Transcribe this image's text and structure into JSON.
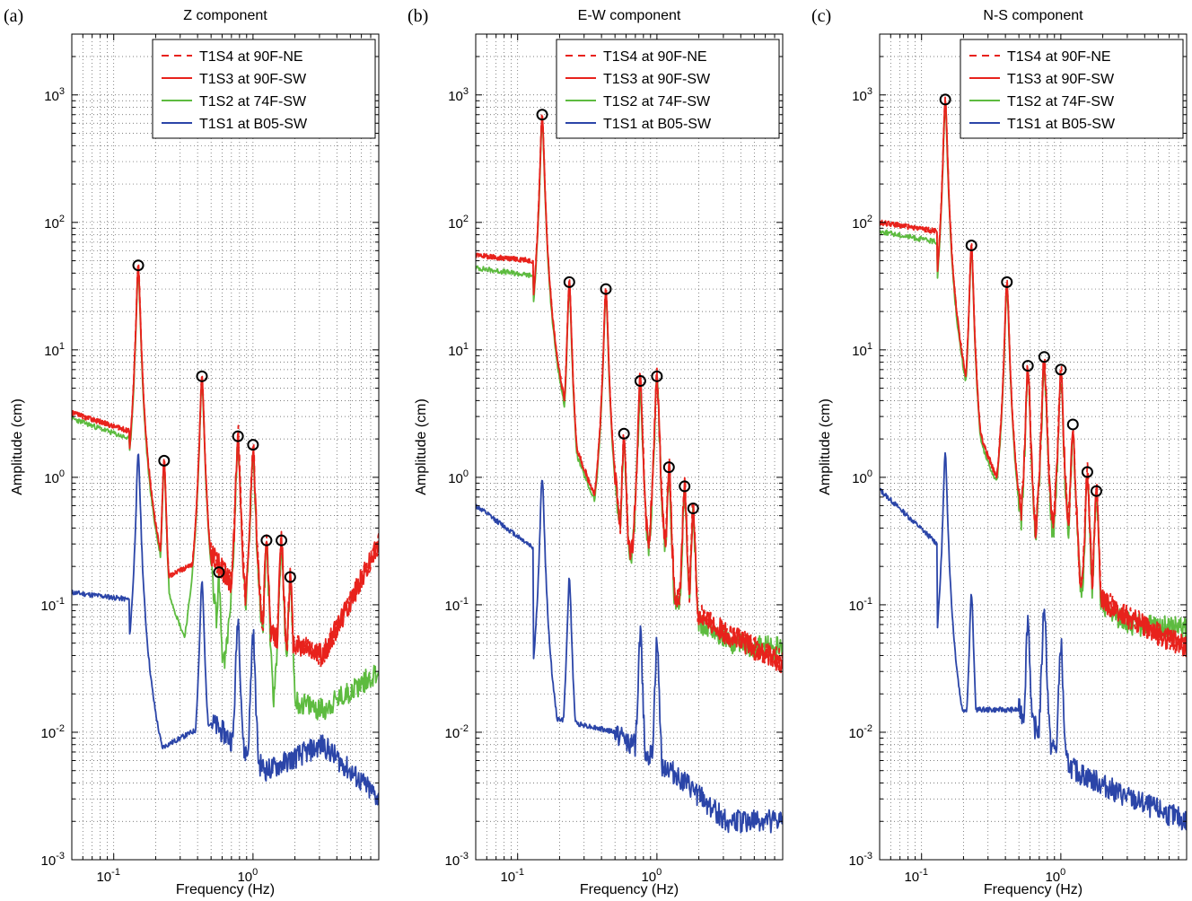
{
  "figure": {
    "ylabel": "Amplitude (cm)",
    "xlabel": "Frequency (Hz)"
  },
  "legend": [
    {
      "label": "T1S4 at 90F-NE",
      "color": "#e8221c",
      "style": "dashed"
    },
    {
      "label": "T1S3 at 90F-SW",
      "color": "#e8221c",
      "style": "solid"
    },
    {
      "label": "T1S2 at 74F-SW",
      "color": "#5dbb3f",
      "style": "solid"
    },
    {
      "label": "T1S1 at B05-SW",
      "color": "#2b45a8",
      "style": "solid"
    }
  ],
  "chart_data": [
    {
      "type": "line",
      "panel": "(a)",
      "title": "Z component",
      "xscale": "log",
      "yscale": "log",
      "xlim": [
        0.05,
        8
      ],
      "ylim": [
        0.001,
        3000
      ],
      "xticks": [
        "10^-1",
        "10^0"
      ],
      "yticks": [
        "10^-3",
        "10^-2",
        "10^-1",
        "10^0",
        "10^1",
        "10^2",
        "10^3"
      ],
      "grid": true,
      "legend_position": "top-right",
      "base": {
        "T1S3": [
          3.2,
          2.3
        ],
        "T1S2": [
          2.9,
          2.0
        ],
        "T1S1": [
          0.125,
          0.11
        ]
      },
      "peaks": [
        {
          "f": 0.15,
          "amp": 46,
          "T1S1": 1.5,
          "marked": true
        },
        {
          "f": 0.23,
          "amp": 1.35,
          "marked": true
        },
        {
          "f": 0.43,
          "amp": 6.2,
          "T1S1": 0.15,
          "marked": true
        },
        {
          "f": 0.57,
          "amp": 0.18,
          "marked": true
        },
        {
          "f": 0.78,
          "amp": 2.1,
          "T1S1": 0.08,
          "marked": true
        },
        {
          "f": 1.0,
          "amp": 1.8,
          "T1S1": 0.06,
          "marked": true
        },
        {
          "f": 1.25,
          "amp": 0.32,
          "marked": true
        },
        {
          "f": 1.6,
          "amp": 0.32,
          "marked": true
        },
        {
          "f": 1.85,
          "amp": 0.165,
          "marked": true
        }
      ],
      "tail": {
        "T1S3": [
          0.25,
          0.06,
          0.04,
          0.3
        ],
        "T1S2": [
          0.03,
          0.02,
          0.015,
          0.03
        ],
        "T1S1": [
          0.012,
          0.005,
          0.008,
          0.003
        ]
      }
    },
    {
      "type": "line",
      "panel": "(b)",
      "title": "E-W component",
      "xscale": "log",
      "yscale": "log",
      "xlim": [
        0.05,
        8
      ],
      "ylim": [
        0.001,
        3000
      ],
      "xticks": [
        "10^-1",
        "10^0"
      ],
      "yticks": [
        "10^-3",
        "10^-2",
        "10^-1",
        "10^0",
        "10^1",
        "10^2",
        "10^3"
      ],
      "grid": true,
      "legend_position": "top-right",
      "base": {
        "T1S3": [
          55,
          50
        ],
        "T1S2": [
          44,
          38
        ],
        "T1S1": [
          0.6,
          0.28
        ]
      },
      "peaks": [
        {
          "f": 0.15,
          "amp": 700,
          "T1S1": 1.0,
          "marked": true
        },
        {
          "f": 0.235,
          "amp": 34,
          "T1S1": 0.16,
          "marked": true
        },
        {
          "f": 0.43,
          "amp": 30,
          "marked": true
        },
        {
          "f": 0.58,
          "amp": 2.2,
          "marked": true
        },
        {
          "f": 0.76,
          "amp": 5.7,
          "T1S1": 0.06,
          "marked": true
        },
        {
          "f": 1.0,
          "amp": 6.2,
          "T1S1": 0.05,
          "marked": true
        },
        {
          "f": 1.22,
          "amp": 1.2,
          "marked": true
        },
        {
          "f": 1.58,
          "amp": 0.85,
          "marked": true
        },
        {
          "f": 1.82,
          "amp": 0.57,
          "marked": true
        }
      ],
      "tail": {
        "T1S3": [
          0.06,
          0.03,
          0.01,
          0.03
        ],
        "T1S2": [
          0.1,
          0.08,
          0.05,
          0.045
        ],
        "T1S1": [
          0.01,
          0.005,
          0.002,
          0.002
        ]
      }
    },
    {
      "type": "line",
      "panel": "(c)",
      "title": "N-S component",
      "xscale": "log",
      "yscale": "log",
      "xlim": [
        0.05,
        8
      ],
      "ylim": [
        0.001,
        3000
      ],
      "xticks": [
        "10^-1",
        "10^0"
      ],
      "yticks": [
        "10^-3",
        "10^-2",
        "10^-1",
        "10^0",
        "10^1",
        "10^2",
        "10^3"
      ],
      "grid": true,
      "legend_position": "top-right",
      "base": {
        "T1S3": [
          100,
          85
        ],
        "T1S2": [
          85,
          70
        ],
        "T1S1": [
          0.8,
          0.3
        ]
      },
      "peaks": [
        {
          "f": 0.148,
          "amp": 920,
          "T1S1": 1.5,
          "marked": true
        },
        {
          "f": 0.228,
          "amp": 66,
          "T1S1": 0.12,
          "marked": true
        },
        {
          "f": 0.41,
          "amp": 34,
          "marked": true
        },
        {
          "f": 0.58,
          "amp": 7.5,
          "T1S1": 0.08,
          "marked": true
        },
        {
          "f": 0.76,
          "amp": 8.8,
          "T1S1": 0.1,
          "marked": true
        },
        {
          "f": 1.0,
          "amp": 7.0,
          "T1S1": 0.05,
          "marked": true
        },
        {
          "f": 1.22,
          "amp": 2.6,
          "marked": true
        },
        {
          "f": 1.55,
          "amp": 1.1,
          "marked": true
        },
        {
          "f": 1.8,
          "amp": 0.78,
          "marked": true
        }
      ],
      "tail": {
        "T1S3": [
          0.15,
          0.06,
          0.02,
          0.04
        ],
        "T1S2": [
          0.15,
          0.1,
          0.07,
          0.065
        ],
        "T1S1": [
          0.015,
          0.005,
          0.003,
          0.002
        ]
      }
    }
  ]
}
